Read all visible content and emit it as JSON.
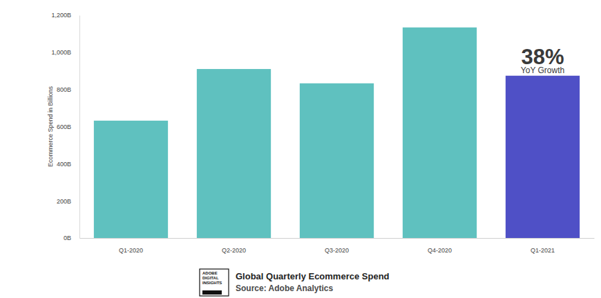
{
  "chart_data": {
    "type": "bar",
    "title": "Global Quarterly Ecommerce Spend",
    "subtitle": "Source: Adobe Analytics",
    "logo": [
      "ADOBE",
      "DIGITAL",
      "INSIGHTS"
    ],
    "y_label": "Ecommerce Spend in Billions",
    "annotations": [
      "38%",
      "YoY Growth"
    ],
    "categories": [
      "Q1-2020",
      "Q2-2020",
      "Q3-2020",
      "Q4-2020",
      "Q1-2021"
    ],
    "values": [
      632,
      910,
      833,
      1134,
      874
    ],
    "colors": [
      "#5fc1bf",
      "#5fc1bf",
      "#5fc1bf",
      "#5fc1bf",
      "#4f50c6"
    ],
    "ylim": [
      0,
      1200
    ],
    "yticks": [
      {
        "value": 0,
        "label": "0B"
      },
      {
        "value": 200,
        "label": "200B"
      },
      {
        "value": 400,
        "label": "400B"
      },
      {
        "value": 600,
        "label": "600B"
      },
      {
        "value": 800,
        "label": "800B"
      },
      {
        "value": 1000,
        "label": "1,000B"
      },
      {
        "value": 1200,
        "label": "1,200B"
      }
    ],
    "grid": false
  }
}
